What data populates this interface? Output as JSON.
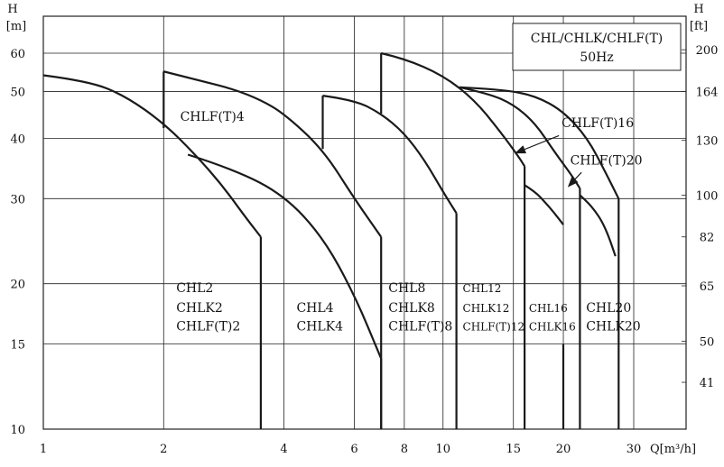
{
  "chart_data": {
    "type": "line",
    "xscale": "log",
    "yscale": "log",
    "xlim": [
      1,
      30
    ],
    "ylim": [
      10,
      60
    ],
    "x_ticks": [
      {
        "v": 1,
        "label": "1"
      },
      {
        "v": 2,
        "label": "2"
      },
      {
        "v": 4,
        "label": "4"
      },
      {
        "v": 6,
        "label": "6"
      },
      {
        "v": 8,
        "label": "8"
      },
      {
        "v": 10,
        "label": "10"
      },
      {
        "v": 15,
        "label": "15"
      },
      {
        "v": 20,
        "label": "20"
      },
      {
        "v": 30,
        "label": "30"
      }
    ],
    "x_grid": [
      1,
      2,
      4,
      6,
      8,
      10,
      15,
      20,
      30
    ],
    "y_ticks_left": [
      {
        "v": 10,
        "label": "10"
      },
      {
        "v": 15,
        "label": "15"
      },
      {
        "v": 20,
        "label": "20"
      },
      {
        "v": 30,
        "label": "30"
      },
      {
        "v": 40,
        "label": "40"
      },
      {
        "v": 50,
        "label": "50"
      },
      {
        "v": 60,
        "label": "60"
      }
    ],
    "y_ticks_right": [
      {
        "v": 12.5,
        "label": "41"
      },
      {
        "v": 15.2,
        "label": "50"
      },
      {
        "v": 19.8,
        "label": "65"
      },
      {
        "v": 25.0,
        "label": "82"
      },
      {
        "v": 30.5,
        "label": "100"
      },
      {
        "v": 39.6,
        "label": "130"
      },
      {
        "v": 50.0,
        "label": "164"
      },
      {
        "v": 61.0,
        "label": "200"
      }
    ],
    "ylabel_left_sym": "H",
    "ylabel_left_unit": "[m]",
    "ylabel_right_sym": "H",
    "ylabel_right_unit": "[ft]",
    "xlabel": "Q[m³/h]",
    "title_line1": "CHL/CHLK/CHLF(T)",
    "title_line2": "50Hz",
    "series": [
      {
        "x": [
          1.0,
          1.3,
          1.6,
          2.0,
          2.4,
          2.8,
          3.2,
          3.5
        ],
        "y": [
          54,
          52.5,
          49,
          43,
          37,
          32,
          27.5,
          25
        ]
      },
      {
        "x": [
          3.5,
          3.5
        ],
        "y": [
          25,
          10
        ]
      },
      {
        "x": [
          2.0,
          2.0
        ],
        "y": [
          42,
          55
        ]
      },
      {
        "x": [
          2.0,
          2.5,
          3.0,
          3.5,
          4.0,
          5.0,
          6.0,
          7.0
        ],
        "y": [
          55,
          52.5,
          50.5,
          48,
          45,
          38,
          30,
          25
        ]
      },
      {
        "x": [
          7.0,
          7.0
        ],
        "y": [
          25,
          10
        ]
      },
      {
        "x": [
          2.3,
          3.0,
          4.0,
          5.0,
          6.0,
          7.0
        ],
        "y": [
          37,
          34.5,
          30.5,
          25,
          19,
          14
        ]
      },
      {
        "x": [
          7.0,
          7.0
        ],
        "y": [
          14,
          10
        ]
      },
      {
        "x": [
          5.0,
          5.0
        ],
        "y": [
          38,
          49
        ]
      },
      {
        "x": [
          5.0,
          6.0,
          7.0,
          8.0,
          9.0,
          10.0,
          10.8
        ],
        "y": [
          49,
          48,
          45,
          41,
          36,
          31,
          28
        ]
      },
      {
        "x": [
          10.8,
          10.8
        ],
        "y": [
          28,
          10
        ]
      },
      {
        "x": [
          7.0,
          7.0
        ],
        "y": [
          45,
          60
        ]
      },
      {
        "x": [
          7.0,
          8.0,
          10.0,
          12.0,
          14.0,
          15.5,
          16.0
        ],
        "y": [
          60,
          58.5,
          54,
          48,
          41,
          36.5,
          35
        ]
      },
      {
        "x": [
          16.0,
          16.0
        ],
        "y": [
          35,
          10
        ]
      },
      {
        "x": [
          11.0,
          13.0,
          15.0,
          17.0,
          19.0,
          21.0,
          22.0
        ],
        "y": [
          51,
          49.5,
          47,
          43,
          37.5,
          33.5,
          31.5
        ]
      },
      {
        "x": [
          22.0,
          22.0
        ],
        "y": [
          31.5,
          10
        ]
      },
      {
        "x": [
          11.0,
          14.0,
          17.0,
          20.0,
          23.0,
          25.5,
          27.5
        ],
        "y": [
          51,
          50.5,
          49,
          45.5,
          40,
          34,
          30
        ]
      },
      {
        "x": [
          27.5,
          27.5
        ],
        "y": [
          30,
          10
        ]
      },
      {
        "x": [
          16.0,
          17.0,
          18.0,
          19.0,
          20.0
        ],
        "y": [
          32,
          31,
          29.5,
          28,
          26.5
        ]
      },
      {
        "x": [
          20.0,
          20.0
        ],
        "y": [
          15,
          10
        ]
      },
      {
        "x": [
          22.0,
          23.0,
          24.0,
          25.0,
          26.0,
          27.0
        ],
        "y": [
          30.5,
          29.5,
          28.3,
          26.9,
          25.0,
          22.8
        ]
      }
    ],
    "annotations": [
      {
        "text": "CHLF(T)4",
        "x": 2.2,
        "y": 43.5,
        "size": "lbl"
      },
      {
        "text": "CHL2",
        "x": 2.15,
        "y": 19.2,
        "size": "lbl"
      },
      {
        "text": "CHLK2",
        "x": 2.15,
        "y": 17.5,
        "size": "lbl"
      },
      {
        "text": "CHLF(T)2",
        "x": 2.15,
        "y": 16.0,
        "size": "lbl"
      },
      {
        "text": "CHL4",
        "x": 4.3,
        "y": 17.5,
        "size": "lbl"
      },
      {
        "text": "CHLK4",
        "x": 4.3,
        "y": 16.0,
        "size": "lbl"
      },
      {
        "text": "CHL8",
        "x": 7.3,
        "y": 19.2,
        "size": "lbl"
      },
      {
        "text": "CHLK8",
        "x": 7.3,
        "y": 17.5,
        "size": "lbl"
      },
      {
        "text": "CHLF(T)8",
        "x": 7.3,
        "y": 16.0,
        "size": "lbl"
      },
      {
        "text": "CHL12",
        "x": 11.2,
        "y": 19.2,
        "size": "small"
      },
      {
        "text": "CHLK12",
        "x": 11.2,
        "y": 17.5,
        "size": "small"
      },
      {
        "text": "CHLF(T)12",
        "x": 11.2,
        "y": 16.0,
        "size": "small"
      },
      {
        "text": "CHL16",
        "x": 16.4,
        "y": 17.5,
        "size": "small"
      },
      {
        "text": "CHLK16",
        "x": 16.4,
        "y": 16.0,
        "size": "small"
      },
      {
        "text": "CHL20",
        "x": 22.8,
        "y": 17.5,
        "size": "lbl"
      },
      {
        "text": "CHLK20",
        "x": 22.8,
        "y": 16.0,
        "size": "lbl"
      },
      {
        "text": "CHLF(T)16",
        "x": 19.8,
        "y": 42.2,
        "size": "lbl"
      },
      {
        "text": "CHLF(T)20",
        "x": 20.8,
        "y": 35.3,
        "size": "lbl"
      }
    ],
    "arrows": [
      {
        "x1": 19.5,
        "y1": 40.5,
        "x2": 15.2,
        "y2": 37.3
      },
      {
        "x1": 22.2,
        "y1": 34.0,
        "x2": 20.6,
        "y2": 31.8
      }
    ]
  }
}
